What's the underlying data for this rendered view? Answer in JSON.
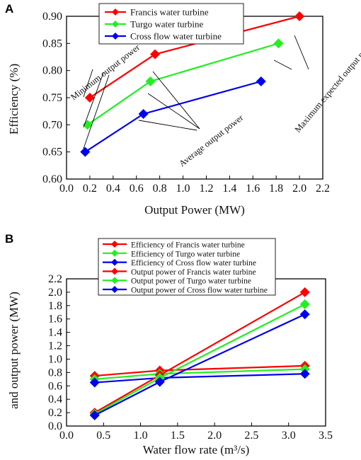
{
  "chart_data": [
    {
      "panel": "A",
      "type": "line",
      "xlabel": "Output Power (MW)",
      "ylabel": "Efficiency (%)",
      "xlim": [
        0.0,
        2.2
      ],
      "ylim": [
        0.6,
        0.9
      ],
      "x_ticks": [
        "0.0",
        "0.2",
        "0.4",
        "0.6",
        "0.8",
        "1.0",
        "1.2",
        "1.4",
        "1.6",
        "1.8",
        "2.0",
        "2.2"
      ],
      "y_ticks": [
        "0.60",
        "0.65",
        "0.70",
        "0.75",
        "0.80",
        "0.85",
        "0.90"
      ],
      "grid": false,
      "legend_position": "top",
      "series": [
        {
          "name": "Francis water turbine",
          "color": "#ff0000",
          "x": [
            0.2,
            0.76,
            2.0
          ],
          "y": [
            0.75,
            0.83,
            0.9
          ]
        },
        {
          "name": "Turgo water turbine",
          "color": "#22ee22",
          "x": [
            0.18,
            0.72,
            1.82
          ],
          "y": [
            0.7,
            0.78,
            0.85
          ]
        },
        {
          "name": "Cross flow water turbine",
          "color": "#0000ee",
          "x": [
            0.16,
            0.66,
            1.67
          ],
          "y": [
            0.65,
            0.72,
            0.78
          ]
        }
      ],
      "annotations": [
        "Minimum output power",
        "Average output power",
        "Maximum expected output power"
      ]
    },
    {
      "panel": "B",
      "type": "line",
      "xlabel": "Water flow rate (m³/s)",
      "ylabel": "and output power (MW)",
      "xlim": [
        0.0,
        3.5
      ],
      "ylim": [
        0.0,
        2.2
      ],
      "x_ticks": [
        "0.0",
        "0.5",
        "1.0",
        "1.5",
        "2.0",
        "2.5",
        "3.0",
        "3.5"
      ],
      "y_ticks": [
        "0.0",
        "0.2",
        "0.4",
        "0.6",
        "0.8",
        "1.0",
        "1.2",
        "1.4",
        "1.6",
        "1.8",
        "2.0",
        "2.2"
      ],
      "grid": false,
      "legend_position": "top",
      "series": [
        {
          "name": "Efficiency of Francis water turbine",
          "color": "#ff0000",
          "x": [
            0.38,
            1.26,
            3.22
          ],
          "y": [
            0.75,
            0.83,
            0.9
          ]
        },
        {
          "name": "Efficiency of Turgo water turbine",
          "color": "#22ee22",
          "x": [
            0.38,
            1.26,
            3.22
          ],
          "y": [
            0.7,
            0.78,
            0.85
          ]
        },
        {
          "name": "Efficiency of Cross flow water turbine",
          "color": "#0000ee",
          "x": [
            0.38,
            1.26,
            3.22
          ],
          "y": [
            0.65,
            0.72,
            0.78
          ]
        },
        {
          "name": "Output power of Francis water turbine",
          "color": "#ff0000",
          "x": [
            0.38,
            1.26,
            3.22
          ],
          "y": [
            0.2,
            0.76,
            2.0
          ]
        },
        {
          "name": "Output power of Turgo water turbine",
          "color": "#22ee22",
          "x": [
            0.38,
            1.26,
            3.22
          ],
          "y": [
            0.18,
            0.72,
            1.82
          ]
        },
        {
          "name": "Output power of Cross flow water turbine",
          "color": "#0000ee",
          "x": [
            0.38,
            1.26,
            3.22
          ],
          "y": [
            0.16,
            0.66,
            1.67
          ]
        }
      ]
    }
  ]
}
